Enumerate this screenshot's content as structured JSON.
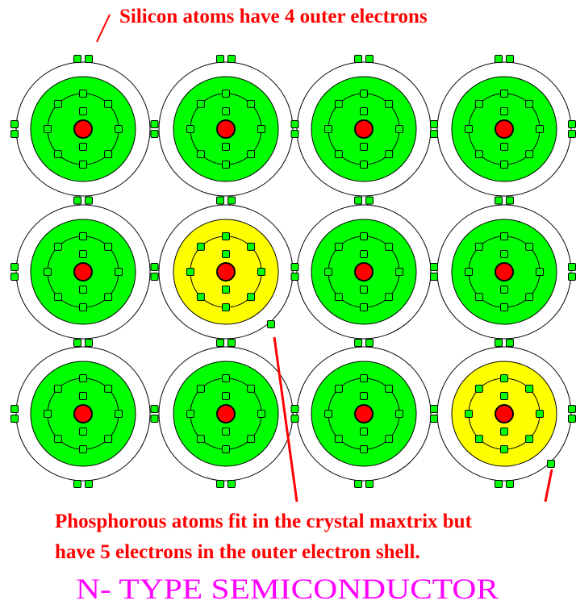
{
  "labels": {
    "top": "Silicon atoms have 4 outer electrons",
    "bottom_line1": "Phosphorous atoms fit in the crystal maxtrix but",
    "bottom_line2": "have 5 electrons in the outer electron shell.",
    "title": "N- TYPE  SEMICONDUCTOR"
  },
  "lattice": {
    "rows": 3,
    "cols": 4,
    "phosphorus_positions": [
      [
        1,
        1
      ],
      [
        2,
        3
      ]
    ]
  },
  "colors": {
    "silicon": "#00ff00",
    "phosphorus": "#ffff00",
    "nucleus": "#ff0000",
    "electron": "#00ff00",
    "annotation": "#ff0000",
    "title": "#ff00ff"
  }
}
